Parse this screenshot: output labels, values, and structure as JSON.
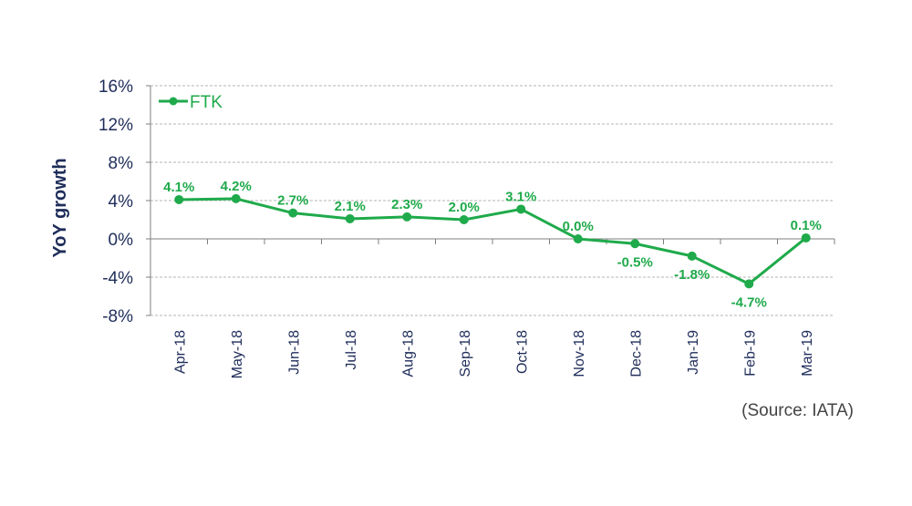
{
  "chart_data": {
    "type": "line",
    "ylabel": "YoY growth",
    "yticks": [
      "16%",
      "12%",
      "8%",
      "4%",
      "0%",
      "-4%",
      "-8%"
    ],
    "ylim": [
      -8,
      16
    ],
    "ytick_values": [
      16,
      12,
      8,
      4,
      0,
      -4,
      -8
    ],
    "categories": [
      "Apr-18",
      "May-18",
      "Jun-18",
      "Jul-18",
      "Aug-18",
      "Sep-18",
      "Oct-18",
      "Nov-18",
      "Dec-18",
      "Jan-19",
      "Feb-19",
      "Mar-19"
    ],
    "series": [
      {
        "name": "FTK",
        "values": [
          4.1,
          4.2,
          2.7,
          2.1,
          2.3,
          2.0,
          3.1,
          0.0,
          -0.5,
          -1.8,
          -4.7,
          0.1
        ],
        "labels": [
          "4.1%",
          "4.2%",
          "2.7%",
          "2.1%",
          "2.3%",
          "2.0%",
          "3.1%",
          "0.0%",
          "-0.5%",
          "-1.8%",
          "-4.7%",
          "0.1%"
        ],
        "label_position": [
          "above",
          "above",
          "above",
          "above",
          "above",
          "above",
          "above",
          "above",
          "below",
          "below",
          "below",
          "above"
        ]
      }
    ],
    "grid": true,
    "legend": "top-left",
    "colors": {
      "series": "#1faa4b",
      "text": "#1f2d5a",
      "grid": "#b5b5b5",
      "axis": "#7f7f7f"
    }
  },
  "source": "(Source: IATA)"
}
